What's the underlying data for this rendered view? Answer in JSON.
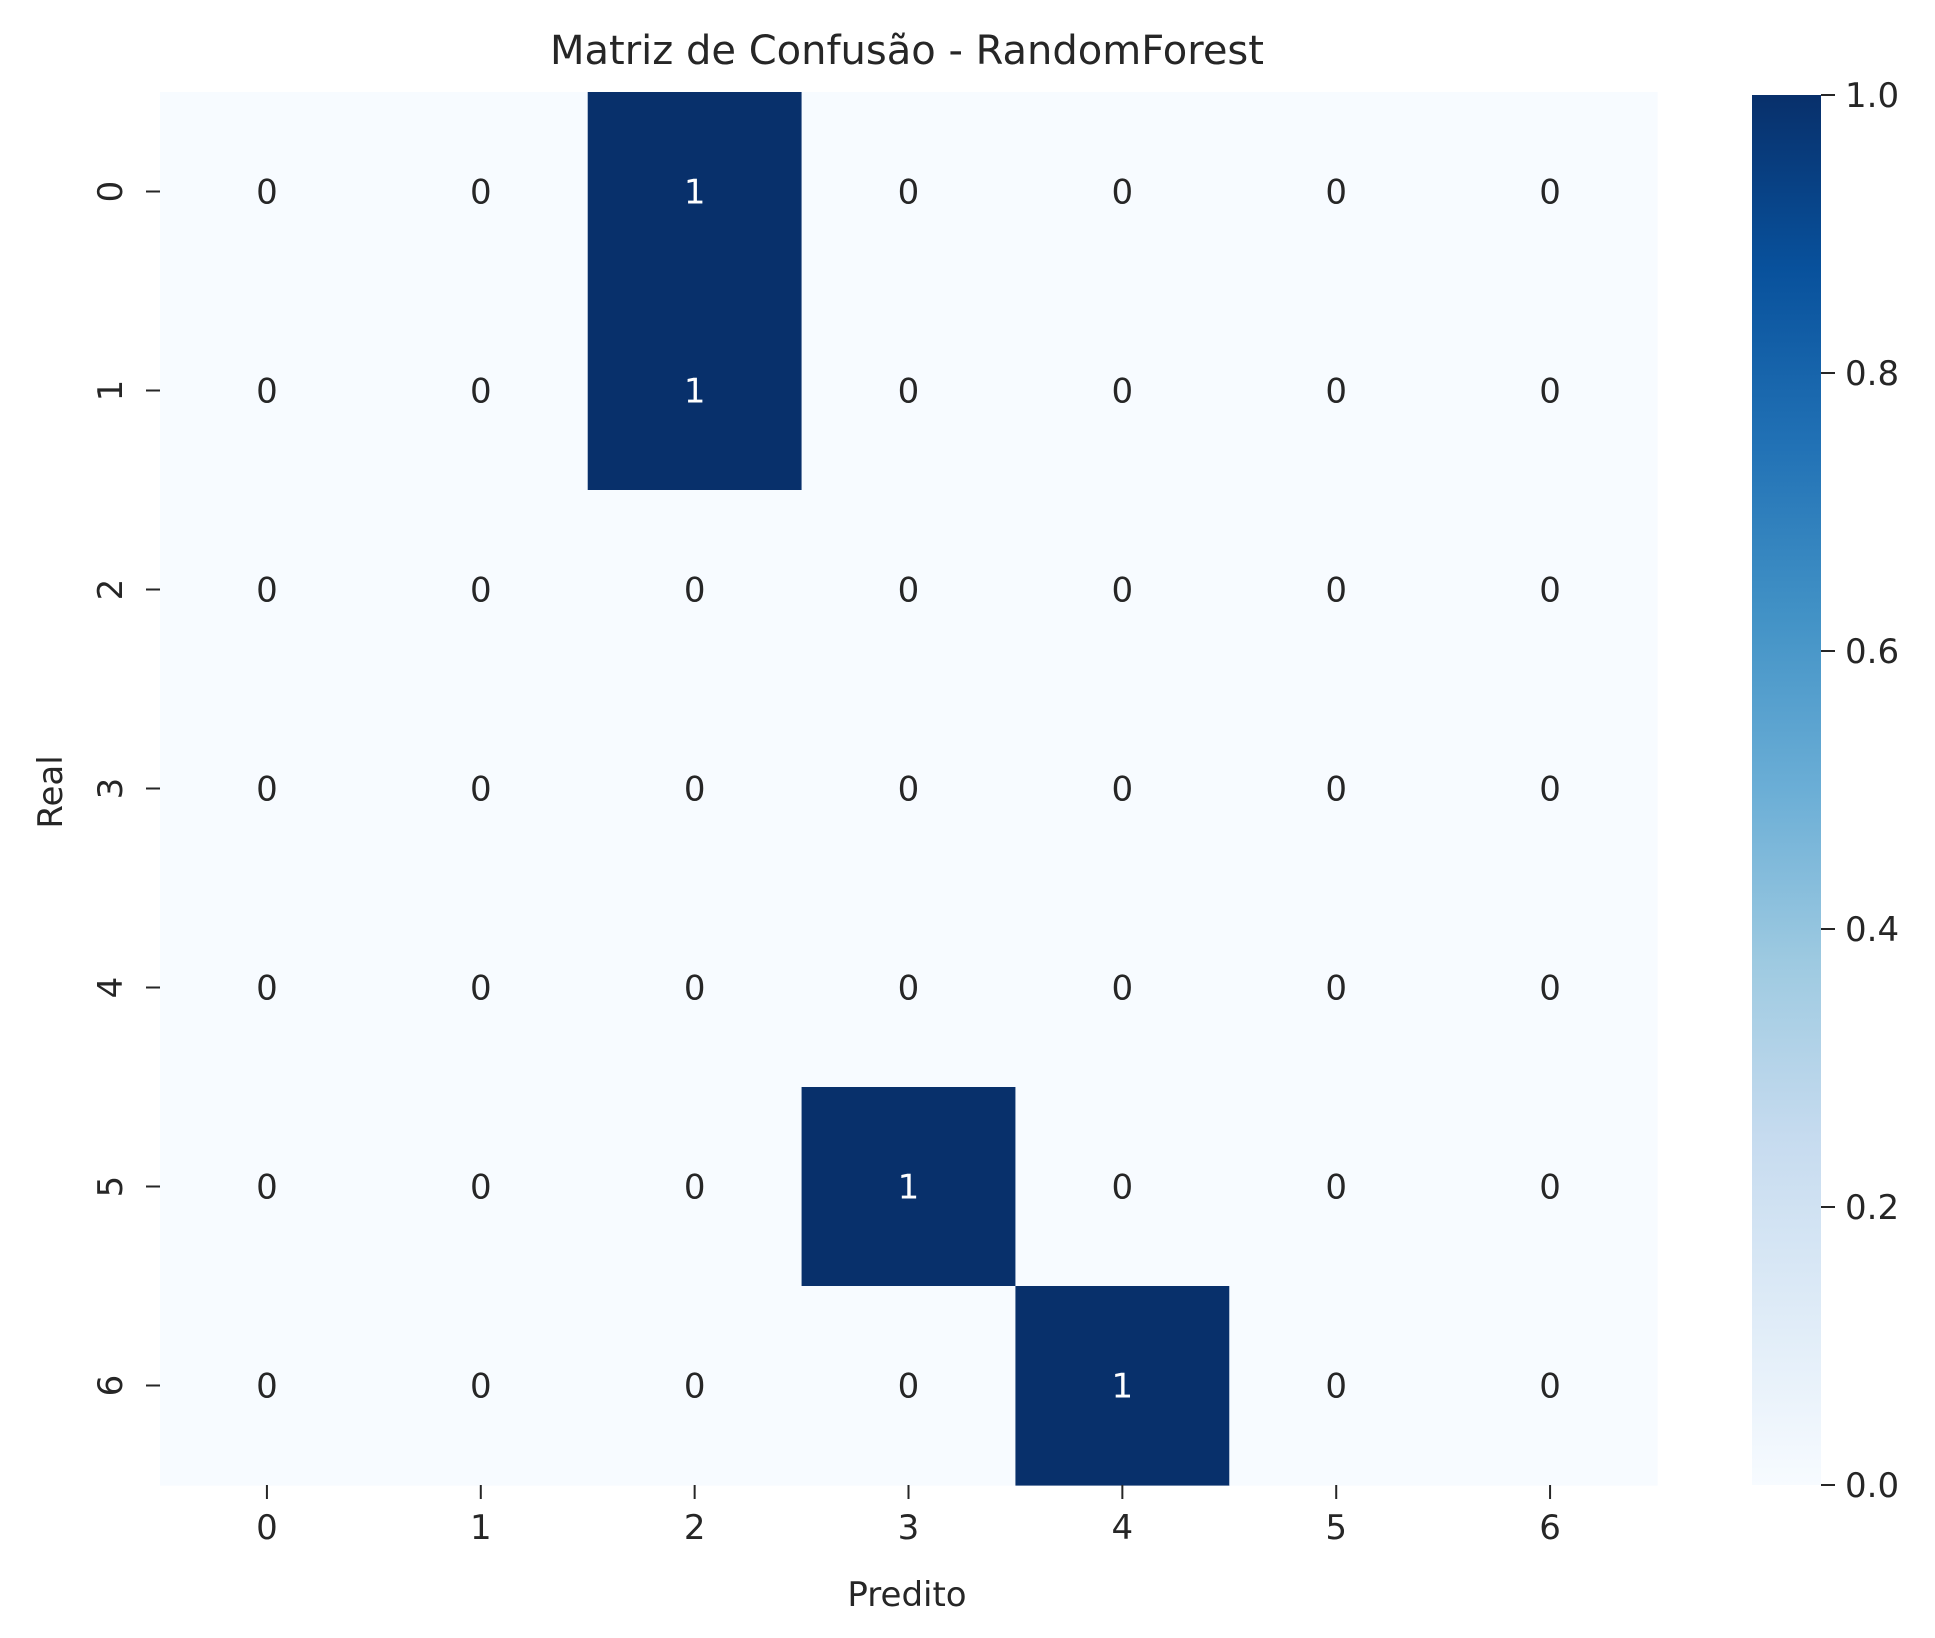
{
  "chart_data": {
    "type": "heatmap",
    "title": "Matriz de Confusão - RandomForest",
    "xlabel": "Predito",
    "ylabel": "Real",
    "x_categories": [
      "0",
      "1",
      "2",
      "3",
      "4",
      "5",
      "6"
    ],
    "y_categories": [
      "0",
      "1",
      "2",
      "3",
      "4",
      "5",
      "6"
    ],
    "values": [
      [
        0,
        0,
        1,
        0,
        0,
        0,
        0
      ],
      [
        0,
        0,
        1,
        0,
        0,
        0,
        0
      ],
      [
        0,
        0,
        0,
        0,
        0,
        0,
        0
      ],
      [
        0,
        0,
        0,
        0,
        0,
        0,
        0
      ],
      [
        0,
        0,
        0,
        0,
        0,
        0,
        0
      ],
      [
        0,
        0,
        0,
        1,
        0,
        0,
        0
      ],
      [
        0,
        0,
        0,
        0,
        1,
        0,
        0
      ]
    ],
    "colormap": "Blues",
    "color_min": "#f7fbff",
    "color_max": "#08306b",
    "annotation_color_dark": "#262626",
    "annotation_color_light": "#ffffff",
    "colorbar": {
      "range": [
        0.0,
        1.0
      ],
      "ticks": [
        "0.0",
        "0.2",
        "0.4",
        "0.6",
        "0.8",
        "1.0"
      ]
    }
  }
}
